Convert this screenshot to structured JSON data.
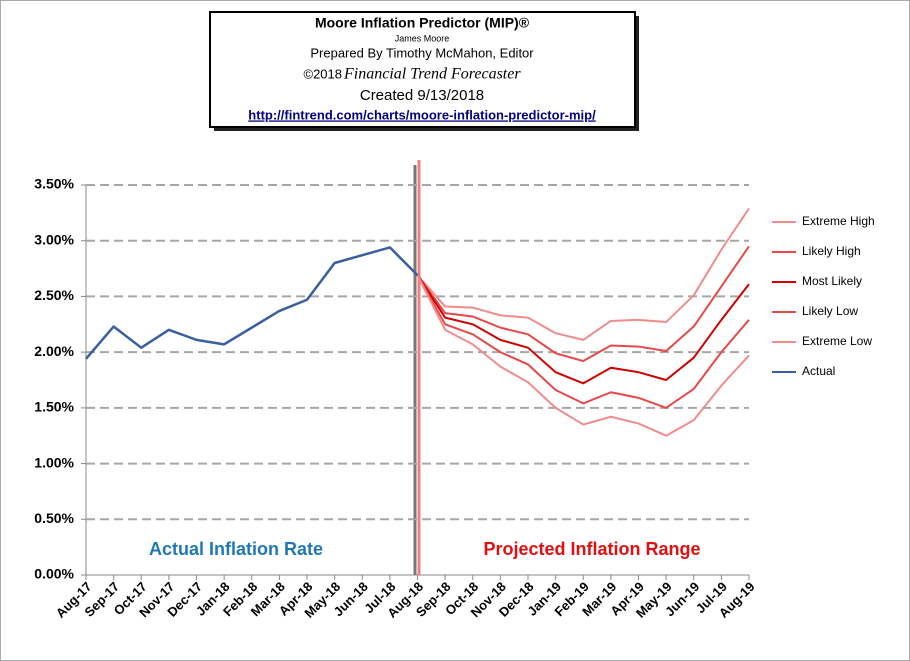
{
  "chart_data": {
    "type": "line",
    "title": "Moore Inflation Predictor (MIP)®",
    "author": "James Moore",
    "prepared_by": "Prepared  By Timothy McMahon, Editor",
    "copyright": "©2018",
    "publisher": "Financial Trend Forecaster",
    "created": "Created  9/13/2018",
    "url": "http://fintrend.com/charts/moore-inflation-predictor-mip/",
    "annotations": [
      "Actual Inflation Rate",
      "Projected Inflation Range"
    ],
    "categories": [
      "Aug-17",
      "Sep-17",
      "Oct-17",
      "Nov-17",
      "Dec-17",
      "Jan-18",
      "Feb-18",
      "Mar-18",
      "Apr-18",
      "May-18",
      "Jun-18",
      "Jul-18",
      "Aug-18",
      "Sep-18",
      "Oct-18",
      "Nov-18",
      "Dec-18",
      "Jan-19",
      "Feb-19",
      "Mar-19",
      "Apr-19",
      "May-19",
      "Jun-19",
      "Jul-19",
      "Aug-19"
    ],
    "ylim": [
      0,
      3.5
    ],
    "yticks": [
      {
        "value": 0,
        "label": "0.00%"
      },
      {
        "value": 0.5,
        "label": "0.50%"
      },
      {
        "value": 1,
        "label": "1.00%"
      },
      {
        "value": 1.5,
        "label": "1.50%"
      },
      {
        "value": 2,
        "label": "2.00%"
      },
      {
        "value": 2.5,
        "label": "2.50%"
      },
      {
        "value": 3,
        "label": "3.00%"
      },
      {
        "value": 3.5,
        "label": "3.50%"
      }
    ],
    "grid": true,
    "legend": "right",
    "series": [
      {
        "name": "Extreme High",
        "color": "#f08c8c",
        "values": [
          null,
          null,
          null,
          null,
          null,
          null,
          null,
          null,
          null,
          null,
          null,
          null,
          2.69,
          2.41,
          2.4,
          2.33,
          2.31,
          2.17,
          2.11,
          2.28,
          2.29,
          2.27,
          2.51,
          2.92,
          3.29
        ]
      },
      {
        "name": "Likely High",
        "color": "#e84848",
        "values": [
          null,
          null,
          null,
          null,
          null,
          null,
          null,
          null,
          null,
          null,
          null,
          null,
          2.69,
          2.35,
          2.32,
          2.22,
          2.16,
          1.99,
          1.92,
          2.06,
          2.05,
          2.01,
          2.23,
          2.59,
          2.95
        ]
      },
      {
        "name": "Most Likely",
        "color": "#d00000",
        "values": [
          null,
          null,
          null,
          null,
          null,
          null,
          null,
          null,
          null,
          null,
          null,
          null,
          2.69,
          2.31,
          2.25,
          2.11,
          2.04,
          1.82,
          1.72,
          1.86,
          1.82,
          1.75,
          1.95,
          2.29,
          2.61
        ]
      },
      {
        "name": "Likely Low",
        "color": "#e84848",
        "values": [
          null,
          null,
          null,
          null,
          null,
          null,
          null,
          null,
          null,
          null,
          null,
          null,
          2.69,
          2.25,
          2.16,
          2.0,
          1.89,
          1.66,
          1.54,
          1.64,
          1.59,
          1.5,
          1.67,
          2.0,
          2.29
        ]
      },
      {
        "name": "Extreme Low",
        "color": "#f08c8c",
        "values": [
          null,
          null,
          null,
          null,
          null,
          null,
          null,
          null,
          null,
          null,
          null,
          null,
          2.69,
          2.2,
          2.07,
          1.87,
          1.73,
          1.5,
          1.35,
          1.42,
          1.36,
          1.25,
          1.39,
          1.7,
          1.97
        ]
      },
      {
        "name": "Actual",
        "color": "#3a5fa0",
        "values": [
          1.94,
          2.23,
          2.04,
          2.2,
          2.11,
          2.07,
          2.22,
          2.37,
          2.47,
          2.8,
          2.87,
          2.94,
          2.69,
          null,
          null,
          null,
          null,
          null,
          null,
          null,
          null,
          null,
          null,
          null,
          null
        ]
      }
    ]
  }
}
